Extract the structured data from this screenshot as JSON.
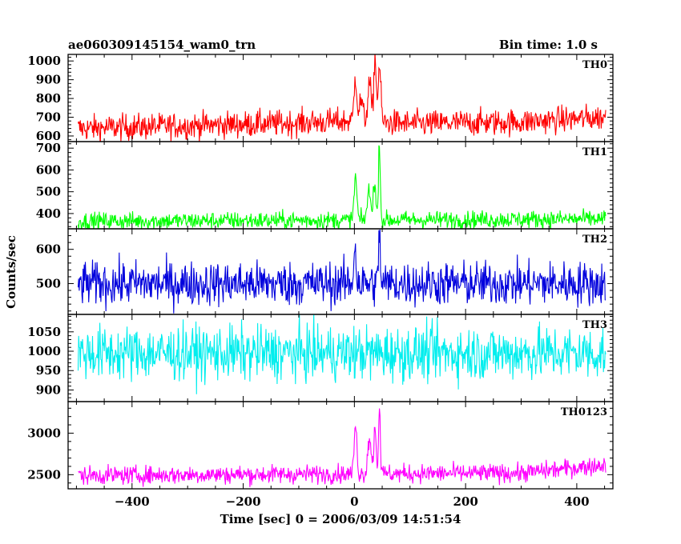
{
  "chart_data": {
    "type": "line",
    "title_left": "ae060309145154_wam0_trn",
    "title_right": "Bin time: 1.0 s",
    "xlabel": "Time [sec] 0 = 2006/03/09 14:51:54",
    "ylabel": "Counts/sec",
    "xlim": [
      -515,
      465
    ],
    "x_ticks": [
      -400,
      -200,
      0,
      200,
      400
    ],
    "x_tick_labels": [
      "−400",
      "−200",
      "0",
      "200",
      "400"
    ],
    "data_range": [
      -497,
      452
    ],
    "bin": 1.0,
    "panels": [
      {
        "name": "TH0",
        "color": "#ff0000",
        "ylim": [
          570,
          1035
        ],
        "y_ticks": [
          600,
          700,
          800,
          900,
          1000
        ],
        "y_tick_labels": [
          "600",
          "700",
          "800",
          "900",
          "1000"
        ],
        "baseline": [
          [
            -497,
            640
          ],
          [
            -300,
            655
          ],
          [
            -100,
            670
          ],
          [
            0,
            680
          ],
          [
            100,
            665
          ],
          [
            300,
            675
          ],
          [
            452,
            700
          ]
        ],
        "noise": 35,
        "peaks": [
          [
            2,
            920,
            2.5
          ],
          [
            12,
            790,
            3
          ],
          [
            27,
            880,
            3
          ],
          [
            37,
            1030,
            2
          ],
          [
            45,
            970,
            2.5
          ]
        ]
      },
      {
        "name": "TH1",
        "color": "#00ff00",
        "ylim": [
          330,
          730
        ],
        "y_ticks": [
          400,
          500,
          600,
          700
        ],
        "y_tick_labels": [
          "400",
          "500",
          "600",
          "700"
        ],
        "baseline": [
          [
            -497,
            365
          ],
          [
            0,
            370
          ],
          [
            452,
            375
          ]
        ],
        "noise": 20,
        "peaks": [
          [
            2,
            565,
            2.5
          ],
          [
            26,
            500,
            3
          ],
          [
            36,
            540,
            2.5
          ],
          [
            45,
            740,
            1.5
          ]
        ]
      },
      {
        "name": "TH2",
        "color": "#0000dd",
        "ylim": [
          410,
          660
        ],
        "y_ticks": [
          500,
          600
        ],
        "y_tick_labels": [
          "500",
          "600"
        ],
        "baseline": [
          [
            -497,
            500
          ],
          [
            0,
            500
          ],
          [
            452,
            500
          ]
        ],
        "noise": 32,
        "peaks": [
          [
            1,
            620,
            2
          ],
          [
            45,
            655,
            1.5
          ]
        ]
      },
      {
        "name": "TH3",
        "color": "#00eeee",
        "ylim": [
          870,
          1095
        ],
        "y_ticks": [
          900,
          950,
          1000,
          1050
        ],
        "y_tick_labels": [
          "900",
          "950",
          "1000",
          "1050"
        ],
        "baseline": [
          [
            -497,
            995
          ],
          [
            0,
            995
          ],
          [
            452,
            995
          ]
        ],
        "noise": 35,
        "peaks": []
      },
      {
        "name": "TH0123",
        "color": "#ff00ff",
        "ylim": [
          2330,
          3380
        ],
        "y_ticks": [
          2500,
          3000
        ],
        "y_tick_labels": [
          "2500",
          "3000"
        ],
        "baseline": [
          [
            -497,
            2490
          ],
          [
            0,
            2510
          ],
          [
            300,
            2520
          ],
          [
            452,
            2620
          ]
        ],
        "noise": 55,
        "peaks": [
          [
            2,
            3080,
            2.5
          ],
          [
            27,
            2950,
            3
          ],
          [
            37,
            3100,
            2
          ],
          [
            45,
            3380,
            1.5
          ]
        ]
      }
    ]
  }
}
